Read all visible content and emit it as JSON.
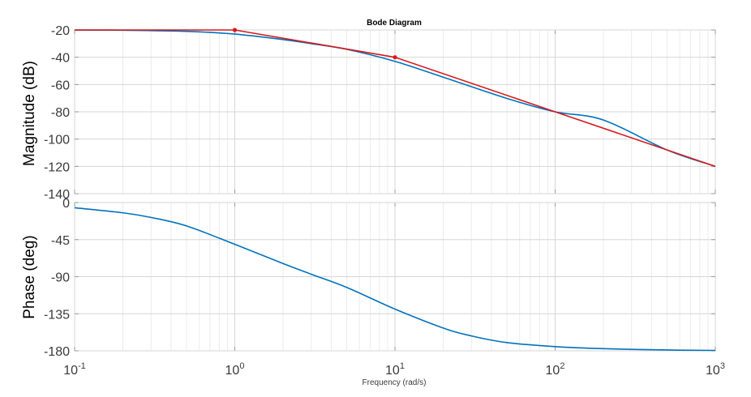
{
  "chart_data": [
    {
      "type": "line",
      "panel": "magnitude",
      "title": "Bode Diagram",
      "ylabel": "Magnitude (dB)",
      "xscale": "log",
      "xlim": [
        0.1,
        1000
      ],
      "ylim": [
        -140,
        -20
      ],
      "yticks": [
        -20,
        -40,
        -60,
        -80,
        -100,
        -120,
        -140
      ],
      "grid": true,
      "series": [
        {
          "color": "#0072BD",
          "x": [
            0.1,
            0.2,
            0.5,
            1,
            2,
            3,
            5,
            10,
            20,
            50,
            100,
            200,
            500,
            1000
          ],
          "values": [
            -20.05,
            -20.2,
            -21,
            -23,
            -27,
            -30,
            -34.2,
            -43,
            -54.6,
            -70.2,
            -80,
            -86,
            -108,
            -120
          ]
        },
        {
          "color": "#D7191C",
          "x": [
            0.1,
            1,
            10,
            100,
            1000
          ],
          "values": [
            -20,
            -20,
            -40,
            -80,
            -120
          ],
          "markers": [
            [
              1,
              -20
            ],
            [
              10,
              -40
            ]
          ]
        }
      ]
    },
    {
      "type": "line",
      "panel": "phase",
      "ylabel": "Phase (deg)",
      "xlabel": "Frequency  (rad/s)",
      "xscale": "log",
      "xlim": [
        0.1,
        1000
      ],
      "ylim": [
        -180,
        0
      ],
      "yticks": [
        0,
        -45,
        -90,
        -135,
        -180
      ],
      "xticks": [
        {
          "base": "10",
          "exp": "-1"
        },
        {
          "base": "10",
          "exp": "0"
        },
        {
          "base": "10",
          "exp": "1"
        },
        {
          "base": "10",
          "exp": "2"
        },
        {
          "base": "10",
          "exp": "3"
        }
      ],
      "grid": true,
      "series": [
        {
          "color": "#0072BD",
          "x": [
            0.1,
            0.2,
            0.3,
            0.5,
            1,
            2,
            3,
            5,
            10,
            20,
            30,
            50,
            100,
            200,
            500,
            1000
          ],
          "values": [
            -6.3,
            -12.4,
            -18.1,
            -28.4,
            -50.7,
            -74,
            -87,
            -103,
            -129.3,
            -152.3,
            -161.9,
            -170,
            -174.9,
            -177.4,
            -179,
            -179.5
          ]
        }
      ]
    }
  ]
}
